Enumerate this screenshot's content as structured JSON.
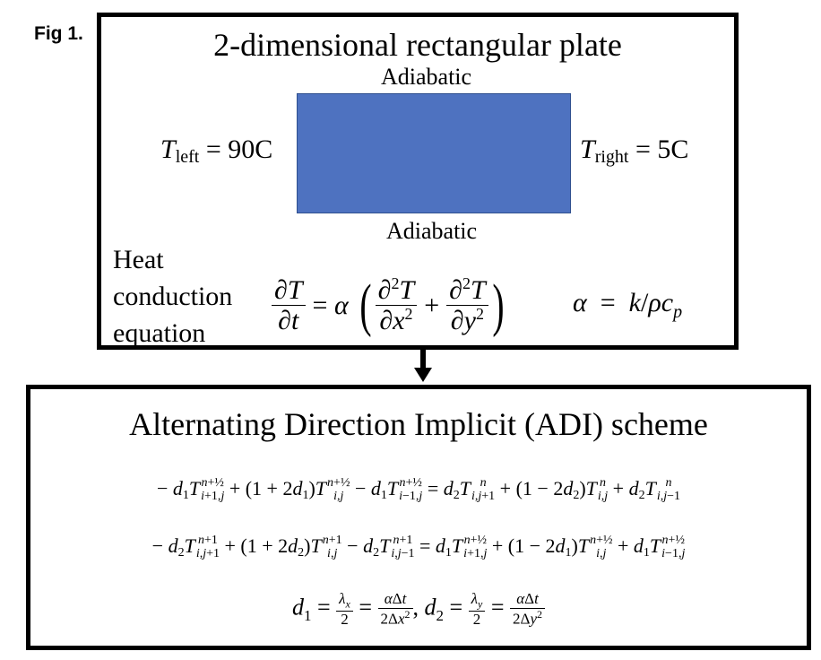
{
  "figure_label": "Fig 1.",
  "top_panel": {
    "title": "2-dimensional rectangular plate",
    "top_boundary": "Adiabatic",
    "bottom_boundary": "Adiabatic",
    "left_bc": {
      "symbol": "T",
      "subscript": "left",
      "rhs": "= 90C"
    },
    "right_bc": {
      "symbol": "T",
      "subscript": "right",
      "rhs": "= 5C"
    },
    "equation_label_lines": [
      "Heat",
      "conduction",
      "equation"
    ],
    "plate_color": "#4e72c0",
    "alpha_definition": "α = k/ρc_p"
  },
  "bottom_panel": {
    "title": "Alternating Direction Implicit (ADI) scheme",
    "equations": [
      "− d1 T_{i+1,j}^{n+1/2} + (1 + 2d1) T_{i,j}^{n+1/2} − d1 T_{i−1,j}^{n+1/2} = d2 T_{i,j+1}^{n} + (1 − 2d2) T_{i,j}^{n} + d2 T_{i,j−1}^{n}",
      "− d2 T_{i,j+1}^{n+1} + (1 + 2d2) T_{i,j}^{n+1} − d2 T_{i,j−1}^{n+1} = d1 T_{i+1,j}^{n+1/2} + (1 − 2d1) T_{i,j}^{n+1/2} + d1 T_{i−1,j}^{n+1/2}",
      "d1 = λx/2 = αΔt/(2Δx²), d2 = λy/2 = αΔt/(2Δy²)"
    ]
  }
}
